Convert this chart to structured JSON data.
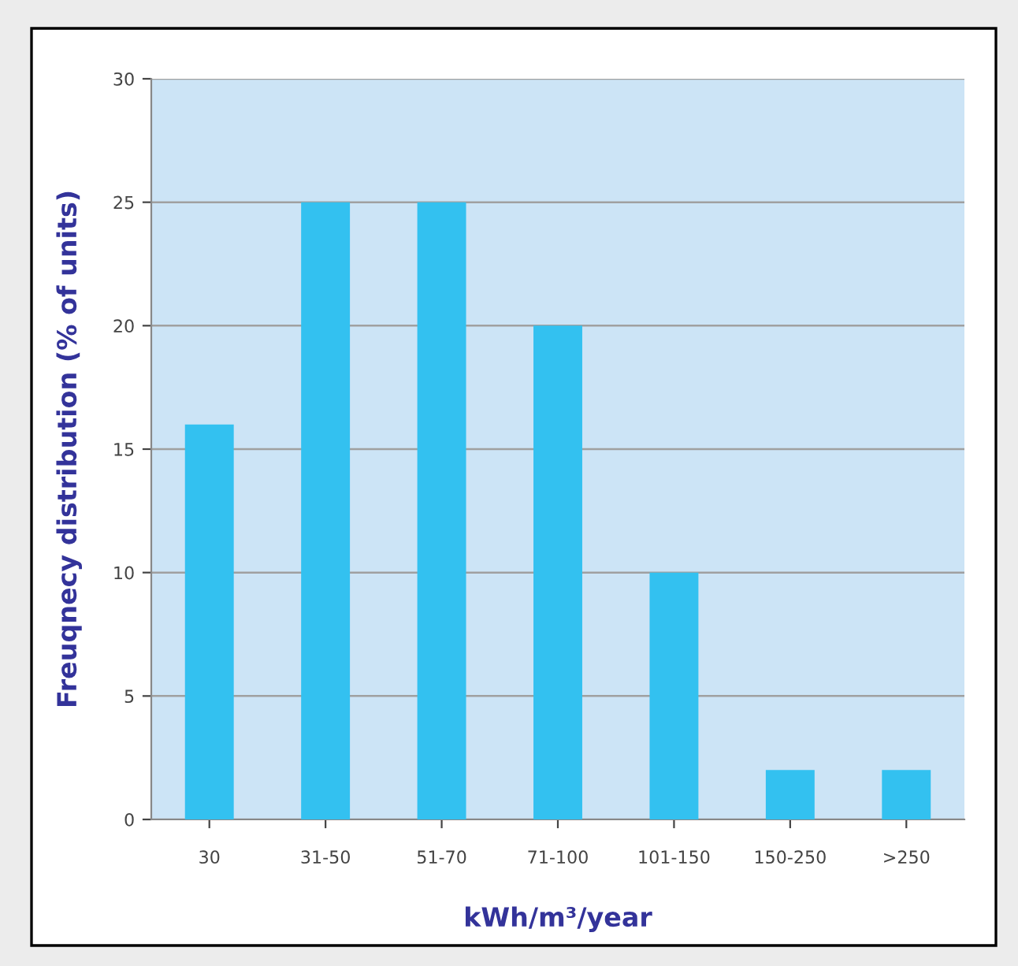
{
  "chart_data": {
    "type": "bar",
    "xlabel": "kWh/m³/year",
    "ylabel": "Freuqnecy distribution (% of units)",
    "categories": [
      "30",
      "31-50",
      "51-70",
      "71-100",
      "101-150",
      "150-250",
      ">250"
    ],
    "values": [
      16,
      25,
      25,
      20,
      10,
      2,
      2
    ],
    "color": "#33c1f0",
    "ylim": [
      0,
      30
    ],
    "yticks": [
      0,
      5,
      10,
      15,
      20,
      25,
      30
    ],
    "grid": "y"
  }
}
